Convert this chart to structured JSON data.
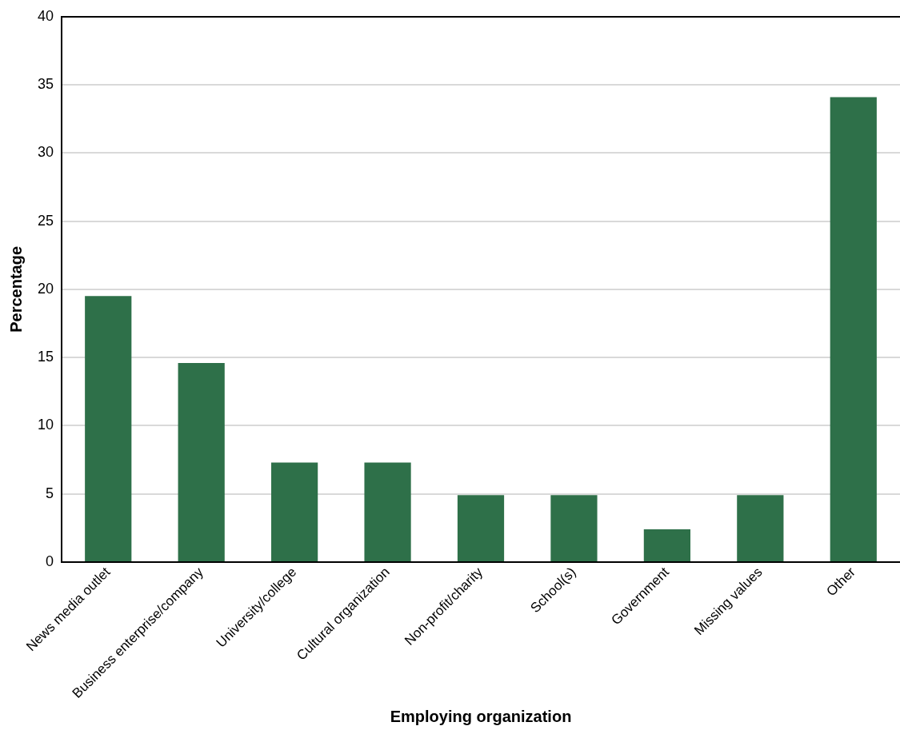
{
  "chart_data": {
    "type": "bar",
    "xlabel": "Employing organization",
    "ylabel": "Percentage",
    "categories": [
      "News media outlet",
      "Business enterprise/company",
      "University/college",
      "Cultural organization",
      "Non-profit/charity",
      "School(s)",
      "Government",
      "Missing values",
      "Other"
    ],
    "values": [
      19.5,
      14.6,
      7.3,
      7.3,
      4.9,
      4.9,
      2.4,
      4.9,
      34.1
    ],
    "color": "#2e7049",
    "ylim": [
      0,
      40
    ],
    "yticks": [
      0,
      5,
      10,
      15,
      20,
      25,
      30,
      35,
      40
    ],
    "grid": "y",
    "legend": false
  }
}
